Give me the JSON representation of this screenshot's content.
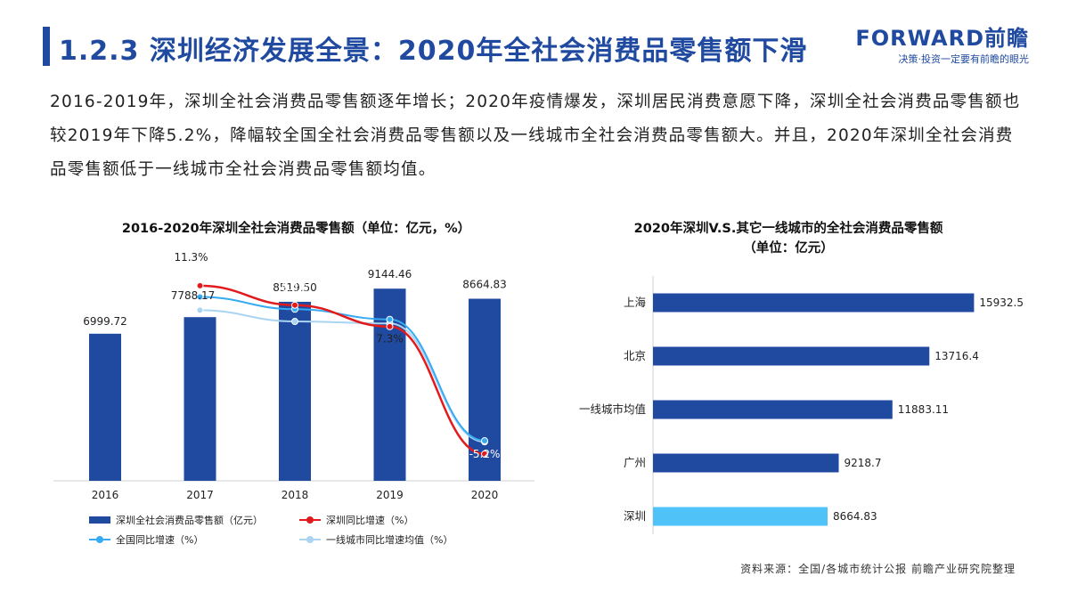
{
  "header": {
    "title": "1.2.3 深圳经济发展全景：2020年全社会消费品零售额下滑",
    "logo_main": "FORWARD前瞻",
    "logo_sub": "决策·投资一定要有前瞻的眼光"
  },
  "summary": "2016-2019年，深圳全社会消费品零售额逐年增长；2020年疫情爆发，深圳居民消费意愿下降，深圳全社会消费品零售额也较2019年下降5.2%，降幅较全国全社会消费品零售额以及一线城市全社会消费品零售额大。并且，2020年深圳全社会消费品零售额低于一线城市全社会消费品零售额均值。",
  "footer": {
    "source": "资料来源：全国/各城市统计公报 前瞻产业研究院整理"
  },
  "colors": {
    "primary": "#1f4aa0",
    "bar": "#1f4aa0",
    "highlight": "#4fc3f7",
    "red": "#e31a1c",
    "blue_line": "#36aaf2",
    "light_line": "#a9d4f2"
  },
  "chart_data": [
    {
      "type": "bar+line",
      "title": "2016-2020年深圳全社会消费品零售额（单位：亿元，%）",
      "categories": [
        "2016",
        "2017",
        "2018",
        "2019",
        "2020"
      ],
      "bar_series": {
        "name": "深圳全社会消费品零售额（亿元）",
        "values": [
          6999.72,
          7788.17,
          8519.5,
          9144.46,
          8664.83
        ],
        "labels": [
          "6999.72",
          "7788.17",
          "8519.50",
          "9144.46",
          "8664.83"
        ]
      },
      "line_series": [
        {
          "name": "深圳同比增速（%）",
          "values": [
            null,
            11.3,
            9.4,
            7.3,
            -5.2
          ],
          "labels": [
            "",
            "11.3%",
            "9.4%",
            "7.3%",
            "-5.2%"
          ]
        },
        {
          "name": "全国同比增速（%）",
          "values": [
            null,
            10.2,
            9.0,
            8.0,
            -3.9
          ],
          "labels": [
            "",
            "",
            "",
            "",
            ""
          ]
        },
        {
          "name": "一线城市同比增速均值（%）",
          "values": [
            null,
            8.9,
            7.8,
            7.6,
            -4.0
          ],
          "labels": [
            "",
            "",
            "",
            "",
            ""
          ]
        }
      ],
      "legend_position": "bottom"
    },
    {
      "type": "bar",
      "orientation": "horizontal",
      "title": "2020年深圳V.S.其它一线城市的全社会消费品零售额（单位：亿元）",
      "title_lines": [
        "2020年深圳V.S.其它一线城市的全社会消费品零售额",
        "（单位：亿元）"
      ],
      "categories": [
        "上海",
        "北京",
        "一线城市均值",
        "广州",
        "深圳"
      ],
      "values": [
        15932.5,
        13716.4,
        11883.11,
        9218.7,
        8664.83
      ],
      "labels": [
        "15932.5",
        "13716.4",
        "11883.11",
        "9218.7",
        "8664.83"
      ],
      "highlight": "深圳"
    }
  ]
}
